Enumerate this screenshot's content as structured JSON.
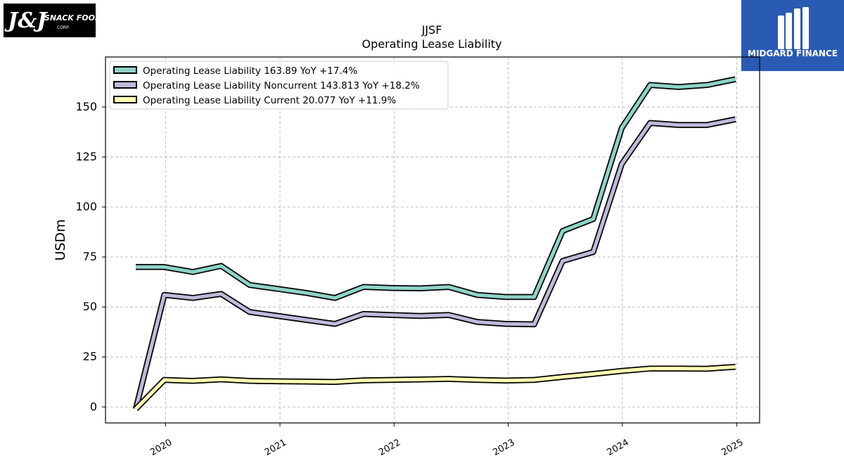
{
  "logos": {
    "left_text": "J&J SNACK FOODS",
    "left_subtext": "CORP.",
    "right_text": "MIDGARD FINANCE"
  },
  "chart_data": {
    "type": "line",
    "title": "JJSF",
    "subtitle": "Operating Lease Liability",
    "ylabel": "USDm",
    "xlabel": "",
    "ylim": [
      -8,
      175
    ],
    "xlim": [
      "2019-06-23",
      "2025-03-15"
    ],
    "yticks": [
      0,
      25,
      50,
      75,
      100,
      125,
      150
    ],
    "xticks": [
      "2020",
      "2021",
      "2022",
      "2023",
      "2024",
      "2025"
    ],
    "grid": true,
    "legend_position": "top-left",
    "x": [
      "2019-09-28",
      "2019-12-28",
      "2020-03-28",
      "2020-06-27",
      "2020-09-26",
      "2020-12-26",
      "2021-03-27",
      "2021-06-26",
      "2021-09-25",
      "2021-12-25",
      "2022-03-26",
      "2022-06-25",
      "2022-09-24",
      "2022-12-24",
      "2023-03-25",
      "2023-06-24",
      "2023-09-30",
      "2023-12-30",
      "2024-03-30",
      "2024-06-29",
      "2024-09-28",
      "2024-12-28"
    ],
    "series": [
      {
        "name": "Operating Lease Liability",
        "legend": "Operating Lease Liability  163.89 YoY +17.4%",
        "color": "#8dd3c7",
        "values": [
          70,
          70,
          67.5,
          70.5,
          61,
          59,
          57,
          54.5,
          60,
          59.5,
          59.3,
          60,
          56,
          55,
          55,
          88,
          94,
          139.5,
          161,
          160,
          161,
          163.89
        ]
      },
      {
        "name": "Operating Lease Liability Noncurrent",
        "legend": "Operating Lease Liability Noncurrent  143.813 YoY +18.2%",
        "color": "#bebada",
        "values": [
          -1,
          56,
          54.5,
          56.5,
          47.5,
          45.5,
          43.5,
          41.5,
          46.5,
          46,
          45.5,
          46,
          42.5,
          41.5,
          41.3,
          73,
          77.5,
          121.5,
          142,
          141,
          141,
          143.813
        ]
      },
      {
        "name": "Operating Lease Liability Current",
        "legend": "Operating Lease Liability Current  20.077 YoY +11.9%",
        "color": "#ffffb3",
        "values": [
          -1,
          13.5,
          13,
          13.8,
          13,
          12.8,
          12.7,
          12.5,
          13.3,
          13.5,
          13.7,
          14,
          13.5,
          13.2,
          13.5,
          15,
          16.5,
          18,
          19.2,
          19.2,
          19.1,
          20.077
        ]
      }
    ]
  }
}
